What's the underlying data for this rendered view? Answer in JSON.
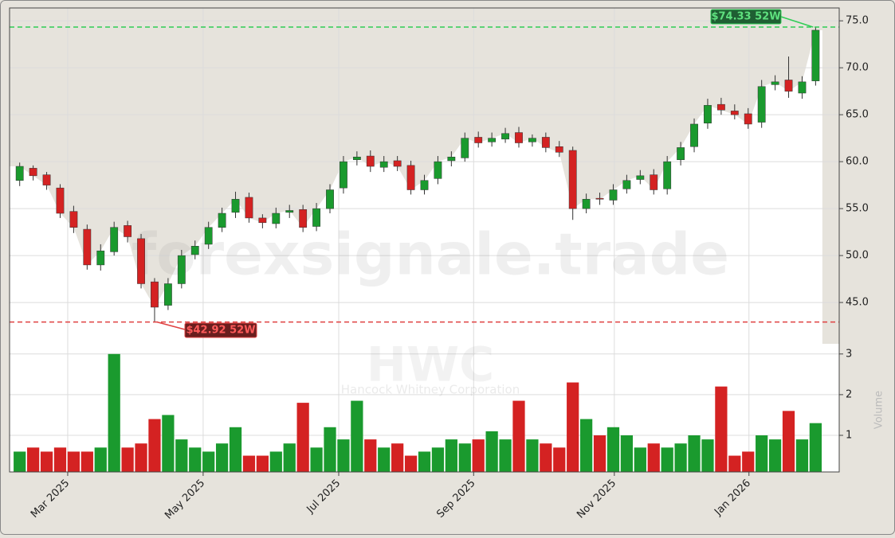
{
  "chart_data": {
    "type": "candlestick",
    "watermark": "forexsignale.trade",
    "symbol": "HWC",
    "company": "Hancock Whitney Corporation",
    "volume_label": "Volume",
    "up_color": "#1a9a2e",
    "down_color": "#d42222",
    "grid": true,
    "open": [
      58,
      59.3,
      58.6,
      57.2,
      54.7,
      52.8,
      49,
      50.4,
      53.2,
      51.8,
      47.2,
      44.7,
      47,
      50.1,
      51.2,
      53,
      54.6,
      56.2,
      54,
      53.4,
      54.6,
      54.9,
      53.1,
      55,
      57.2,
      60.2,
      60.6,
      59.4,
      60.1,
      59.6,
      57,
      58.2,
      60.1,
      60.4,
      62.6,
      62.1,
      62.4,
      63.1,
      62.1,
      62.6,
      61.6,
      61.2,
      55,
      56.1,
      55.9,
      57.1,
      58.1,
      58.6,
      57.1,
      60.2,
      61.6,
      64.1,
      66.1,
      65.4,
      65.1,
      64.2,
      68.2,
      68.7,
      67.3,
      68.6
    ],
    "high": [
      59.9,
      59.6,
      58.9,
      57.6,
      55.3,
      53.3,
      51.2,
      53.6,
      53.7,
      52.3,
      47.6,
      47.6,
      50.6,
      51.6,
      53.6,
      55.1,
      56.8,
      56.7,
      54.4,
      55.1,
      55.4,
      55.4,
      55.6,
      57.6,
      60.6,
      61.1,
      61.2,
      60.6,
      60.6,
      60.1,
      58.6,
      60.6,
      61.1,
      63.1,
      63.2,
      63.1,
      63.6,
      63.7,
      62.9,
      63.1,
      62.2,
      61.6,
      56.6,
      56.7,
      57.6,
      58.6,
      59.1,
      59.2,
      60.6,
      62.1,
      64.6,
      66.7,
      66.8,
      66.1,
      65.7,
      68.7,
      69.2,
      71.2,
      69.1,
      74.33
    ],
    "low": [
      57.4,
      58,
      57,
      54,
      52.4,
      48.5,
      48.4,
      50,
      51.4,
      46.5,
      42.92,
      44.2,
      46.5,
      49.6,
      50.7,
      52.5,
      54,
      53.5,
      52.9,
      52.9,
      54,
      52.5,
      52.6,
      54.5,
      56.6,
      59.6,
      58.9,
      58.9,
      59,
      56.5,
      56.5,
      57.6,
      59.5,
      60,
      61.5,
      61.6,
      62,
      61.5,
      61.6,
      61,
      60.5,
      53.8,
      54.5,
      55.4,
      55.4,
      56.6,
      57.6,
      56.5,
      56.5,
      59.6,
      61,
      63.5,
      65,
      64.5,
      63.5,
      63.6,
      67.6,
      66.8,
      66.7,
      68.1
    ],
    "close": [
      59.5,
      58.5,
      57.5,
      54.5,
      53,
      49,
      50.5,
      53,
      52,
      47,
      44.5,
      47,
      50,
      51,
      53,
      54.5,
      56,
      54,
      53.5,
      54.5,
      54.8,
      53,
      55,
      57,
      60,
      60.5,
      59.5,
      60,
      59.5,
      57,
      58,
      60,
      60.5,
      62.5,
      62,
      62.5,
      63,
      62,
      62.5,
      61.5,
      61,
      55,
      56,
      56,
      57,
      58,
      58.5,
      57,
      60,
      61.5,
      64,
      66,
      65.5,
      65,
      64,
      68,
      68.5,
      67.5,
      68.5,
      74
    ],
    "volume": [
      0.6,
      0.7,
      0.6,
      0.7,
      0.6,
      0.6,
      0.7,
      3.0,
      0.7,
      0.8,
      1.4,
      1.5,
      0.9,
      0.7,
      0.6,
      0.8,
      1.2,
      0.5,
      0.5,
      0.6,
      0.8,
      1.8,
      0.7,
      1.2,
      0.9,
      1.85,
      0.9,
      0.7,
      0.8,
      0.5,
      0.6,
      0.7,
      0.9,
      0.8,
      0.9,
      1.1,
      0.9,
      1.85,
      0.9,
      0.8,
      0.7,
      2.3,
      1.4,
      1.0,
      1.2,
      1.0,
      0.7,
      0.8,
      0.7,
      0.8,
      1.0,
      0.9,
      2.2,
      0.5,
      0.6,
      1.0,
      0.9,
      1.6,
      0.9,
      1.3
    ],
    "xlim": [
      -0.75,
      60.75
    ],
    "xticks": [
      {
        "value": 3.56,
        "label": "Mar 2025"
      },
      {
        "value": 13.6,
        "label": "May 2025"
      },
      {
        "value": 23.65,
        "label": "Jul 2025"
      },
      {
        "value": 33.65,
        "label": "Sep 2025"
      },
      {
        "value": 44.08,
        "label": "Nov 2025"
      },
      {
        "value": 54.06,
        "label": "Jan 2026"
      }
    ],
    "ylim": [
      40.6,
      76.2
    ],
    "yticks": [
      {
        "value": 45,
        "label": "45.0"
      },
      {
        "value": 50,
        "label": "50.0"
      },
      {
        "value": 55,
        "label": "55.0"
      },
      {
        "value": 60,
        "label": "60.0"
      },
      {
        "value": 65,
        "label": "65.0"
      },
      {
        "value": 70,
        "label": "70.0"
      },
      {
        "value": 75,
        "label": "75.0"
      }
    ],
    "y2lim": [
      0.1,
      3.25
    ],
    "y2ticks": [
      1,
      2,
      3
    ],
    "high_line": {
      "value": 74.33,
      "label": "$74.33 52W",
      "color": "#2ecc55"
    },
    "low_line": {
      "value": 42.92,
      "label": "$42.92 52W",
      "color": "#e04040"
    }
  }
}
